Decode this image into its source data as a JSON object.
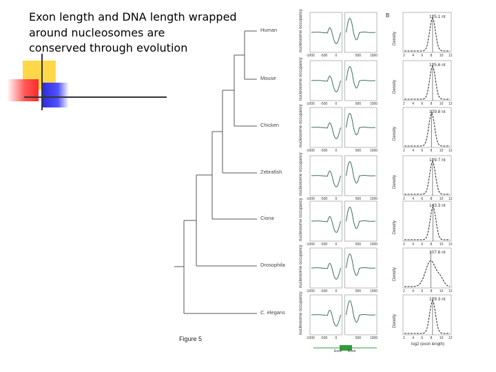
{
  "slide": {
    "title": "Exon length and DNA length wrapped\naround nucleosomes are\nconserved through evolution"
  },
  "figure": {
    "caption": "Figure 5",
    "panel_label": "B",
    "species": [
      "Human",
      "Mouse",
      "Chicken",
      "Zebrafish",
      "Ciona",
      "Drosophila",
      "C. elegans"
    ],
    "peak_labels": [
      "125.1 nt",
      "125.6 nt",
      "129.8 nt",
      "129.7 nt",
      "143.3 nt",
      "107.6 nt",
      "129.3 nt"
    ],
    "occupancy_ylabel": "nucleosome occupancy",
    "density_ylabel": "Density",
    "density_xlabel": "log2 (exon length)",
    "occupancy_xticks": [
      "-1000",
      "-500",
      "0",
      "500",
      "1000"
    ],
    "density_xticks": [
      "2",
      "4",
      "6",
      "8",
      "10",
      "12"
    ],
    "bottom_labels": [
      "Exon",
      "Exon"
    ],
    "colors": {
      "curve": "#3c6e55",
      "branch": "#555555",
      "exon_bar": "#2e9e3a"
    }
  }
}
